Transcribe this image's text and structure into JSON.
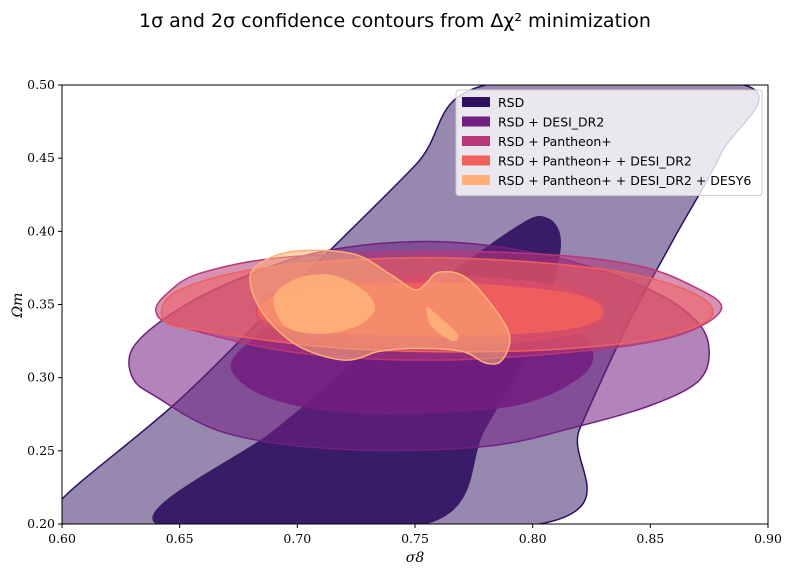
{
  "chart_data": {
    "type": "contour",
    "title": "1σ and 2σ confidence contours from Δχ² minimization",
    "xlabel": "σ8",
    "ylabel": "Ωm",
    "xlim": [
      0.6,
      0.9
    ],
    "ylim": [
      0.2,
      0.5
    ],
    "xticks": [
      "0.60",
      "0.65",
      "0.70",
      "0.75",
      "0.80",
      "0.85",
      "0.90"
    ],
    "yticks": [
      "0.20",
      "0.25",
      "0.30",
      "0.35",
      "0.40",
      "0.45",
      "0.50"
    ],
    "grid": false,
    "legend_position": "top-right",
    "series": [
      {
        "name": "RSD",
        "color": "#2d1160",
        "region_2sigma": [
          [
            0.6,
            0.217
          ],
          [
            0.65,
            0.285
          ],
          [
            0.7,
            0.365
          ],
          [
            0.75,
            0.445
          ],
          [
            0.78,
            0.5
          ],
          [
            0.89,
            0.5
          ],
          [
            0.88,
            0.453
          ],
          [
            0.86,
            0.395
          ],
          [
            0.84,
            0.335
          ],
          [
            0.82,
            0.265
          ],
          [
            0.803,
            0.2
          ],
          [
            0.6,
            0.2
          ]
        ],
        "region_1sigma": [
          [
            0.64,
            0.2
          ],
          [
            0.69,
            0.264
          ],
          [
            0.72,
            0.305
          ],
          [
            0.75,
            0.352
          ],
          [
            0.79,
            0.4
          ],
          [
            0.805,
            0.41
          ],
          [
            0.812,
            0.39
          ],
          [
            0.802,
            0.332
          ],
          [
            0.78,
            0.265
          ],
          [
            0.755,
            0.2
          ]
        ]
      },
      {
        "name": "RSD + DESI_DR2",
        "color": "#721f81",
        "region_2sigma": [
          [
            0.63,
            0.3
          ],
          [
            0.64,
            0.287
          ],
          [
            0.67,
            0.262
          ],
          [
            0.72,
            0.251
          ],
          [
            0.78,
            0.253
          ],
          [
            0.82,
            0.267
          ],
          [
            0.85,
            0.281
          ],
          [
            0.87,
            0.297
          ],
          [
            0.875,
            0.317
          ],
          [
            0.87,
            0.338
          ],
          [
            0.85,
            0.36
          ],
          [
            0.81,
            0.382
          ],
          [
            0.76,
            0.393
          ],
          [
            0.71,
            0.386
          ],
          [
            0.67,
            0.364
          ],
          [
            0.645,
            0.342
          ],
          [
            0.63,
            0.32
          ]
        ],
        "region_1sigma": [
          [
            0.672,
            0.305
          ],
          [
            0.69,
            0.285
          ],
          [
            0.73,
            0.275
          ],
          [
            0.79,
            0.28
          ],
          [
            0.82,
            0.3
          ],
          [
            0.825,
            0.32
          ],
          [
            0.81,
            0.338
          ],
          [
            0.76,
            0.345
          ],
          [
            0.7,
            0.34
          ],
          [
            0.68,
            0.325
          ]
        ]
      },
      {
        "name": "RSD + Pantheon+",
        "color": "#b73779",
        "region_2sigma": [
          [
            0.64,
            0.345
          ],
          [
            0.65,
            0.335
          ],
          [
            0.7,
            0.317
          ],
          [
            0.76,
            0.312
          ],
          [
            0.82,
            0.318
          ],
          [
            0.86,
            0.328
          ],
          [
            0.88,
            0.346
          ],
          [
            0.87,
            0.361
          ],
          [
            0.84,
            0.378
          ],
          [
            0.78,
            0.386
          ],
          [
            0.7,
            0.383
          ],
          [
            0.66,
            0.372
          ],
          [
            0.645,
            0.358
          ]
        ],
        "region_1sigma": [
          [
            0.682,
            0.345
          ],
          [
            0.7,
            0.328
          ],
          [
            0.76,
            0.32
          ],
          [
            0.82,
            0.33
          ],
          [
            0.83,
            0.345
          ],
          [
            0.815,
            0.362
          ],
          [
            0.76,
            0.37
          ],
          [
            0.7,
            0.364
          ]
        ]
      },
      {
        "name": "RSD + Pantheon+ + DESI_DR2",
        "color": "#f1605d",
        "region_2sigma": [
          [
            0.643,
            0.34
          ],
          [
            0.66,
            0.332
          ],
          [
            0.72,
            0.32
          ],
          [
            0.79,
            0.318
          ],
          [
            0.845,
            0.325
          ],
          [
            0.875,
            0.34
          ],
          [
            0.868,
            0.358
          ],
          [
            0.83,
            0.374
          ],
          [
            0.76,
            0.382
          ],
          [
            0.69,
            0.376
          ],
          [
            0.65,
            0.36
          ]
        ],
        "region_1sigma": [
          [
            0.683,
            0.345
          ],
          [
            0.7,
            0.333
          ],
          [
            0.76,
            0.328
          ],
          [
            0.815,
            0.333
          ],
          [
            0.83,
            0.345
          ],
          [
            0.815,
            0.358
          ],
          [
            0.76,
            0.365
          ],
          [
            0.7,
            0.36
          ]
        ]
      },
      {
        "name": "RSD + Pantheon+ + DESI_DR2 + DESY6",
        "color": "#feb078",
        "region_2sigma": [
          [
            0.68,
            0.37
          ],
          [
            0.69,
            0.383
          ],
          [
            0.705,
            0.387
          ],
          [
            0.725,
            0.384
          ],
          [
            0.74,
            0.37
          ],
          [
            0.75,
            0.36
          ],
          [
            0.755,
            0.365
          ],
          [
            0.76,
            0.372
          ],
          [
            0.77,
            0.37
          ],
          [
            0.78,
            0.355
          ],
          [
            0.79,
            0.33
          ],
          [
            0.787,
            0.312
          ],
          [
            0.78,
            0.31
          ],
          [
            0.77,
            0.318
          ],
          [
            0.75,
            0.32
          ],
          [
            0.735,
            0.318
          ],
          [
            0.72,
            0.312
          ],
          [
            0.7,
            0.322
          ],
          [
            0.685,
            0.345
          ]
        ],
        "region_1sigma": [
          [
            0.69,
            0.355
          ],
          [
            0.7,
            0.368
          ],
          [
            0.715,
            0.37
          ],
          [
            0.728,
            0.36
          ],
          [
            0.733,
            0.347
          ],
          [
            0.725,
            0.335
          ],
          [
            0.71,
            0.33
          ],
          [
            0.695,
            0.335
          ]
        ],
        "region_1sigma_b": [
          [
            0.755,
            0.348
          ],
          [
            0.76,
            0.342
          ],
          [
            0.768,
            0.33
          ],
          [
            0.766,
            0.325
          ],
          [
            0.757,
            0.335
          ]
        ]
      }
    ]
  }
}
